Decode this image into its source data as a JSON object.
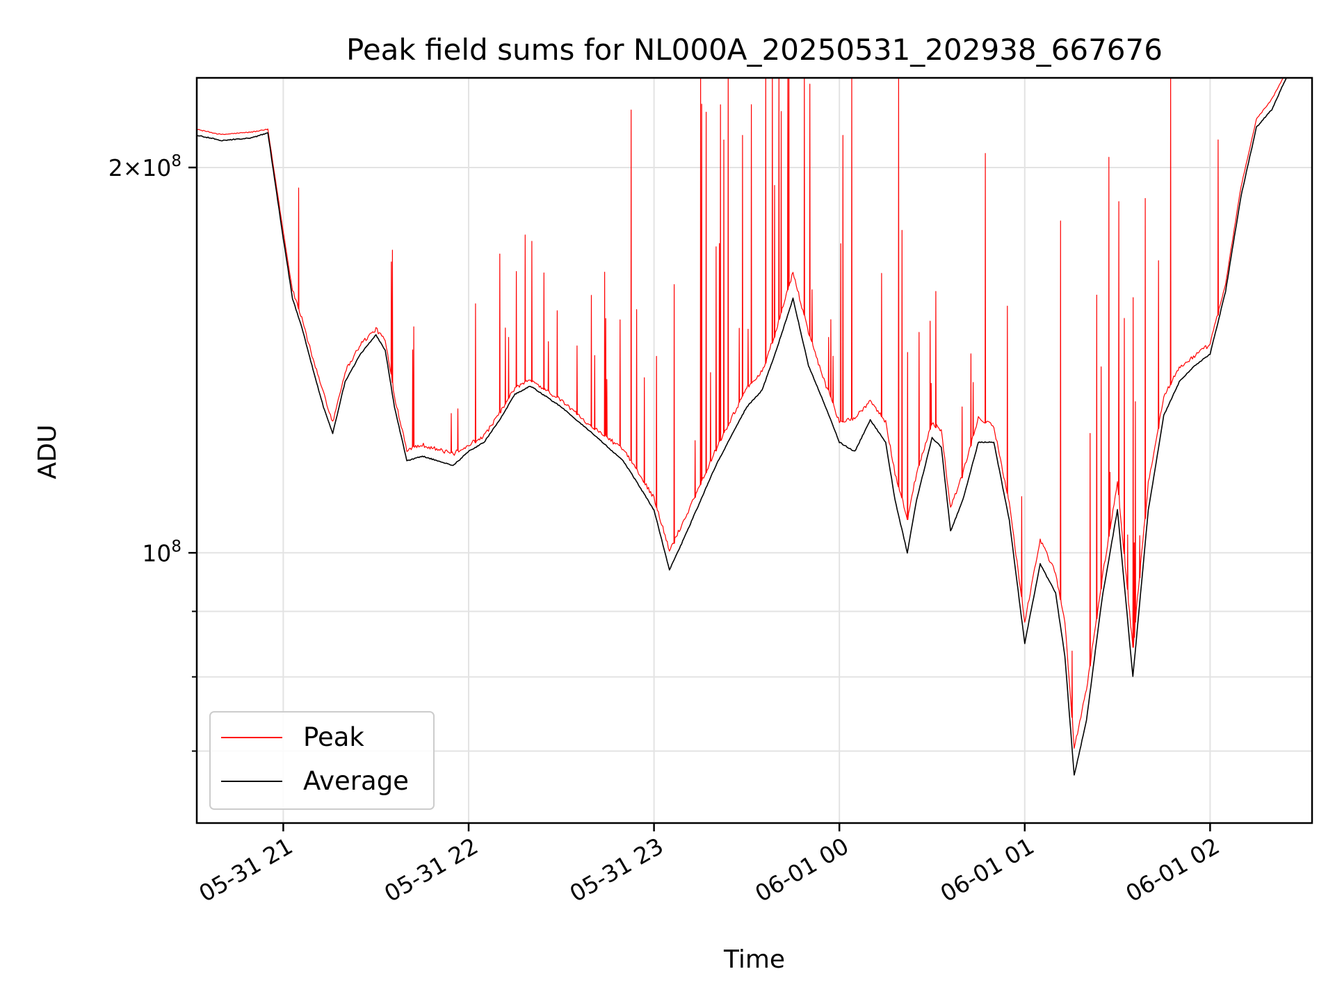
{
  "chart_data": {
    "type": "line",
    "title": "Peak field sums for NL000A_20250531_202938_667676",
    "xlabel": "Time",
    "ylabel": "ADU",
    "yscale": "log",
    "xlim": [
      "2025-05-31 20:32",
      "2025-06-01 02:33"
    ],
    "ylim": [
      61500000,
      235000000
    ],
    "grid": true,
    "legend_position": "lower-left",
    "x_ticks": [
      "2025-05-31 21:00",
      "2025-05-31 22:00",
      "2025-05-31 23:00",
      "2025-06-01 00:00",
      "2025-06-01 01:00",
      "2025-06-01 02:00"
    ],
    "x_tick_labels": [
      "05-31 21",
      "05-31 22",
      "05-31 23",
      "06-01 00",
      "06-01 01",
      "06-01 02"
    ],
    "y_major_ticks": [
      100000000,
      200000000
    ],
    "y_major_tick_labels": [
      "10^8",
      "2×10^8"
    ],
    "y_minor_ticks": [
      70000000,
      80000000,
      90000000
    ],
    "series": [
      {
        "name": "Peak",
        "color": "#ff0000",
        "style": "noisy upper envelope with frequent spikes above the average",
        "x": [
          "2025-05-31 20:32",
          "2025-05-31 20:40",
          "2025-05-31 20:50",
          "2025-05-31 20:55",
          "2025-05-31 21:00",
          "2025-05-31 21:03",
          "2025-05-31 21:06",
          "2025-05-31 21:10",
          "2025-05-31 21:13",
          "2025-05-31 21:16",
          "2025-05-31 21:20",
          "2025-05-31 21:25",
          "2025-05-31 21:30",
          "2025-05-31 21:33",
          "2025-05-31 21:36",
          "2025-05-31 21:40",
          "2025-05-31 21:45",
          "2025-05-31 21:50",
          "2025-05-31 21:55",
          "2025-05-31 22:00",
          "2025-05-31 22:05",
          "2025-05-31 22:10",
          "2025-05-31 22:15",
          "2025-05-31 22:20",
          "2025-05-31 22:30",
          "2025-05-31 22:40",
          "2025-05-31 22:50",
          "2025-05-31 22:55",
          "2025-05-31 23:00",
          "2025-05-31 23:05",
          "2025-05-31 23:10",
          "2025-05-31 23:20",
          "2025-05-31 23:30",
          "2025-05-31 23:35",
          "2025-05-31 23:40",
          "2025-05-31 23:45",
          "2025-05-31 23:50",
          "2025-05-31 23:55",
          "2025-06-01 00:00",
          "2025-06-01 00:05",
          "2025-06-01 00:10",
          "2025-06-01 00:15",
          "2025-06-01 00:18",
          "2025-06-01 00:22",
          "2025-06-01 00:25",
          "2025-06-01 00:30",
          "2025-06-01 00:33",
          "2025-06-01 00:36",
          "2025-06-01 00:40",
          "2025-06-01 00:45",
          "2025-06-01 00:50",
          "2025-06-01 00:55",
          "2025-06-01 01:00",
          "2025-06-01 01:05",
          "2025-06-01 01:10",
          "2025-06-01 01:13",
          "2025-06-01 01:16",
          "2025-06-01 01:20",
          "2025-06-01 01:25",
          "2025-06-01 01:30",
          "2025-06-01 01:35",
          "2025-06-01 01:40",
          "2025-06-01 01:45",
          "2025-06-01 01:50",
          "2025-06-01 01:55",
          "2025-06-01 02:00",
          "2025-06-01 02:05",
          "2025-06-01 02:10",
          "2025-06-01 02:15",
          "2025-06-01 02:20",
          "2025-06-01 02:25"
        ],
        "y": [
          214000000,
          212000000,
          213000000,
          214000000,
          178000000,
          160000000,
          152000000,
          140000000,
          133000000,
          126000000,
          138000000,
          145000000,
          149000000,
          146000000,
          132000000,
          120000000,
          121000000,
          120000000,
          119000000,
          121000000,
          123000000,
          128000000,
          134000000,
          136000000,
          131000000,
          125000000,
          120000000,
          115000000,
          110000000,
          100000000,
          106000000,
          120000000,
          134000000,
          138000000,
          150000000,
          165000000,
          148000000,
          136000000,
          126000000,
          127000000,
          131000000,
          126000000,
          115000000,
          106000000,
          115000000,
          126000000,
          124000000,
          108000000,
          115000000,
          127000000,
          125000000,
          109000000,
          88000000,
          102000000,
          96000000,
          88000000,
          70000000,
          78000000,
          95000000,
          113000000,
          84000000,
          113000000,
          132000000,
          139000000,
          142000000,
          145000000,
          162000000,
          193000000,
          218000000,
          226000000,
          238000000
        ]
      },
      {
        "name": "Average",
        "color": "#000000",
        "x": [
          "2025-05-31 20:32",
          "2025-05-31 20:40",
          "2025-05-31 20:50",
          "2025-05-31 20:55",
          "2025-05-31 21:00",
          "2025-05-31 21:03",
          "2025-05-31 21:06",
          "2025-05-31 21:10",
          "2025-05-31 21:13",
          "2025-05-31 21:16",
          "2025-05-31 21:20",
          "2025-05-31 21:25",
          "2025-05-31 21:30",
          "2025-05-31 21:33",
          "2025-05-31 21:36",
          "2025-05-31 21:40",
          "2025-05-31 21:45",
          "2025-05-31 21:50",
          "2025-05-31 21:55",
          "2025-05-31 22:00",
          "2025-05-31 22:05",
          "2025-05-31 22:10",
          "2025-05-31 22:15",
          "2025-05-31 22:20",
          "2025-05-31 22:30",
          "2025-05-31 22:40",
          "2025-05-31 22:50",
          "2025-05-31 22:55",
          "2025-05-31 23:00",
          "2025-05-31 23:05",
          "2025-05-31 23:10",
          "2025-05-31 23:20",
          "2025-05-31 23:30",
          "2025-05-31 23:35",
          "2025-05-31 23:40",
          "2025-05-31 23:45",
          "2025-05-31 23:50",
          "2025-05-31 23:55",
          "2025-06-01 00:00",
          "2025-06-01 00:05",
          "2025-06-01 00:10",
          "2025-06-01 00:15",
          "2025-06-01 00:18",
          "2025-06-01 00:22",
          "2025-06-01 00:25",
          "2025-06-01 00:30",
          "2025-06-01 00:33",
          "2025-06-01 00:36",
          "2025-06-01 00:40",
          "2025-06-01 00:45",
          "2025-06-01 00:50",
          "2025-06-01 00:55",
          "2025-06-01 01:00",
          "2025-06-01 01:05",
          "2025-06-01 01:10",
          "2025-06-01 01:13",
          "2025-06-01 01:16",
          "2025-06-01 01:20",
          "2025-06-01 01:25",
          "2025-06-01 01:30",
          "2025-06-01 01:35",
          "2025-06-01 01:40",
          "2025-06-01 01:45",
          "2025-06-01 01:50",
          "2025-06-01 01:55",
          "2025-06-01 02:00",
          "2025-06-01 02:05",
          "2025-06-01 02:10",
          "2025-06-01 02:15",
          "2025-06-01 02:20",
          "2025-06-01 02:25"
        ],
        "y": [
          212000000,
          210000000,
          211000000,
          213000000,
          176000000,
          158000000,
          150000000,
          138000000,
          130000000,
          124000000,
          136000000,
          143000000,
          148000000,
          144000000,
          130000000,
          118000000,
          119000000,
          118000000,
          117000000,
          120000000,
          122000000,
          127000000,
          133000000,
          135000000,
          130000000,
          124000000,
          118000000,
          113000000,
          108000000,
          97000000,
          103000000,
          117000000,
          130000000,
          134000000,
          145000000,
          158000000,
          140000000,
          131000000,
          122000000,
          120000000,
          127000000,
          122000000,
          110000000,
          100000000,
          110000000,
          123000000,
          121000000,
          104000000,
          110000000,
          122000000,
          122000000,
          106000000,
          85000000,
          98000000,
          93000000,
          83000000,
          67000000,
          74000000,
          92000000,
          108000000,
          80000000,
          108000000,
          128000000,
          136000000,
          140000000,
          143000000,
          160000000,
          190000000,
          215000000,
          222000000,
          236000000
        ]
      }
    ]
  }
}
